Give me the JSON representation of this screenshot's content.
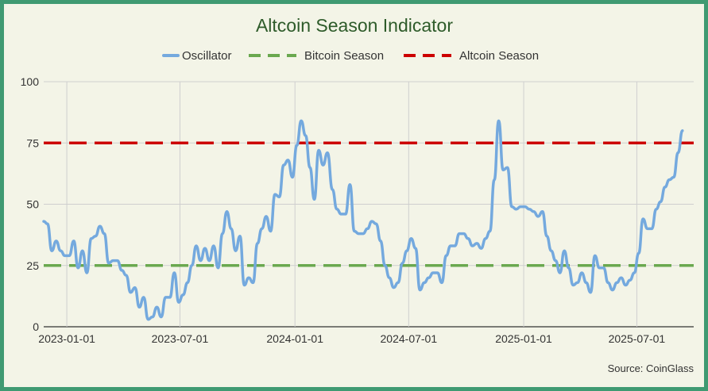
{
  "chart_data": {
    "type": "line",
    "title": "Altcoin Season Indicator",
    "source": "Source: CoinGlass",
    "ylim": [
      0,
      100
    ],
    "yticks": [
      0,
      25,
      50,
      75,
      100
    ],
    "xlim": [
      "2022-11-25",
      "2025-09-30"
    ],
    "xticks": [
      "2023-01-01",
      "2023-07-01",
      "2024-01-01",
      "2024-07-01",
      "2025-01-01",
      "2025-07-01"
    ],
    "grid": true,
    "legend_position": "top-center",
    "colors": {
      "oscillator": "#74a9de",
      "bitcoin": "#6aa84f",
      "altcoin": "#cc0000"
    },
    "series": [
      {
        "name": "Oscillator",
        "style": "solid",
        "points": [
          [
            "2022-11-25",
            43
          ],
          [
            "2022-12-01",
            42
          ],
          [
            "2022-12-08",
            31
          ],
          [
            "2022-12-15",
            35
          ],
          [
            "2022-12-22",
            31
          ],
          [
            "2022-12-29",
            29
          ],
          [
            "2023-01-05",
            29
          ],
          [
            "2023-01-12",
            35
          ],
          [
            "2023-01-19",
            24
          ],
          [
            "2023-01-26",
            31
          ],
          [
            "2023-02-02",
            22
          ],
          [
            "2023-02-09",
            36
          ],
          [
            "2023-02-16",
            37
          ],
          [
            "2023-02-23",
            41
          ],
          [
            "2023-03-02",
            38
          ],
          [
            "2023-03-09",
            26
          ],
          [
            "2023-03-16",
            27
          ],
          [
            "2023-03-23",
            27
          ],
          [
            "2023-03-30",
            23
          ],
          [
            "2023-04-06",
            21
          ],
          [
            "2023-04-13",
            14
          ],
          [
            "2023-04-20",
            16
          ],
          [
            "2023-04-27",
            8
          ],
          [
            "2023-05-04",
            12
          ],
          [
            "2023-05-11",
            3
          ],
          [
            "2023-05-18",
            4
          ],
          [
            "2023-05-25",
            8
          ],
          [
            "2023-06-01",
            4
          ],
          [
            "2023-06-08",
            12
          ],
          [
            "2023-06-15",
            12
          ],
          [
            "2023-06-22",
            22
          ],
          [
            "2023-06-29",
            10
          ],
          [
            "2023-07-06",
            13
          ],
          [
            "2023-07-13",
            18
          ],
          [
            "2023-07-20",
            25
          ],
          [
            "2023-07-27",
            33
          ],
          [
            "2023-08-03",
            27
          ],
          [
            "2023-08-10",
            32
          ],
          [
            "2023-08-17",
            27
          ],
          [
            "2023-08-24",
            33
          ],
          [
            "2023-08-31",
            24
          ],
          [
            "2023-09-07",
            38
          ],
          [
            "2023-09-14",
            47
          ],
          [
            "2023-09-21",
            40
          ],
          [
            "2023-09-28",
            31
          ],
          [
            "2023-10-05",
            37
          ],
          [
            "2023-10-12",
            17
          ],
          [
            "2023-10-19",
            20
          ],
          [
            "2023-10-26",
            18
          ],
          [
            "2023-11-02",
            34
          ],
          [
            "2023-11-09",
            40
          ],
          [
            "2023-11-16",
            45
          ],
          [
            "2023-11-23",
            39
          ],
          [
            "2023-11-30",
            54
          ],
          [
            "2023-12-07",
            53
          ],
          [
            "2023-12-14",
            66
          ],
          [
            "2023-12-21",
            68
          ],
          [
            "2023-12-28",
            61
          ],
          [
            "2024-01-04",
            74
          ],
          [
            "2024-01-11",
            84
          ],
          [
            "2024-01-18",
            78
          ],
          [
            "2024-01-25",
            65
          ],
          [
            "2024-02-01",
            52
          ],
          [
            "2024-02-08",
            72
          ],
          [
            "2024-02-15",
            66
          ],
          [
            "2024-02-22",
            71
          ],
          [
            "2024-03-01",
            56
          ],
          [
            "2024-03-08",
            48
          ],
          [
            "2024-03-15",
            46
          ],
          [
            "2024-03-22",
            46
          ],
          [
            "2024-03-29",
            58
          ],
          [
            "2024-04-05",
            39
          ],
          [
            "2024-04-12",
            38
          ],
          [
            "2024-04-19",
            38
          ],
          [
            "2024-04-26",
            40
          ],
          [
            "2024-05-03",
            43
          ],
          [
            "2024-05-10",
            42
          ],
          [
            "2024-05-17",
            35
          ],
          [
            "2024-05-24",
            25
          ],
          [
            "2024-05-31",
            20
          ],
          [
            "2024-06-07",
            16
          ],
          [
            "2024-06-14",
            18
          ],
          [
            "2024-06-21",
            26
          ],
          [
            "2024-06-28",
            31
          ],
          [
            "2024-07-05",
            36
          ],
          [
            "2024-07-12",
            32
          ],
          [
            "2024-07-19",
            15
          ],
          [
            "2024-07-26",
            18
          ],
          [
            "2024-08-02",
            20
          ],
          [
            "2024-08-09",
            22
          ],
          [
            "2024-08-16",
            22
          ],
          [
            "2024-08-23",
            18
          ],
          [
            "2024-08-30",
            29
          ],
          [
            "2024-09-06",
            33
          ],
          [
            "2024-09-13",
            33
          ],
          [
            "2024-09-20",
            38
          ],
          [
            "2024-09-27",
            38
          ],
          [
            "2024-10-04",
            36
          ],
          [
            "2024-10-11",
            33
          ],
          [
            "2024-10-18",
            34
          ],
          [
            "2024-10-25",
            32
          ],
          [
            "2024-11-01",
            36
          ],
          [
            "2024-11-08",
            39
          ],
          [
            "2024-11-15",
            60
          ],
          [
            "2024-11-22",
            84
          ],
          [
            "2024-11-29",
            64
          ],
          [
            "2024-12-06",
            65
          ],
          [
            "2024-12-13",
            49
          ],
          [
            "2024-12-20",
            48
          ],
          [
            "2024-12-27",
            49
          ],
          [
            "2025-01-03",
            49
          ],
          [
            "2025-01-10",
            48
          ],
          [
            "2025-01-17",
            47
          ],
          [
            "2025-01-24",
            45
          ],
          [
            "2025-01-31",
            47
          ],
          [
            "2025-02-07",
            37
          ],
          [
            "2025-02-14",
            31
          ],
          [
            "2025-02-21",
            27
          ],
          [
            "2025-02-28",
            22
          ],
          [
            "2025-03-07",
            31
          ],
          [
            "2025-03-14",
            24
          ],
          [
            "2025-03-21",
            17
          ],
          [
            "2025-03-28",
            18
          ],
          [
            "2025-04-04",
            22
          ],
          [
            "2025-04-11",
            18
          ],
          [
            "2025-04-18",
            14
          ],
          [
            "2025-04-25",
            29
          ],
          [
            "2025-05-02",
            24
          ],
          [
            "2025-05-09",
            24
          ],
          [
            "2025-05-16",
            18
          ],
          [
            "2025-05-23",
            15
          ],
          [
            "2025-05-30",
            18
          ],
          [
            "2025-06-06",
            20
          ],
          [
            "2025-06-13",
            17
          ],
          [
            "2025-06-20",
            19
          ],
          [
            "2025-06-27",
            22
          ],
          [
            "2025-07-04",
            30
          ],
          [
            "2025-07-11",
            44
          ],
          [
            "2025-07-18",
            40
          ],
          [
            "2025-07-25",
            40
          ],
          [
            "2025-08-01",
            48
          ],
          [
            "2025-08-08",
            51
          ],
          [
            "2025-08-15",
            57
          ],
          [
            "2025-08-22",
            60
          ],
          [
            "2025-08-29",
            61
          ],
          [
            "2025-09-05",
            71
          ],
          [
            "2025-09-12",
            80
          ]
        ]
      },
      {
        "name": "Bitcoin Season",
        "style": "dashed",
        "value": 25
      },
      {
        "name": "Altcoin Season",
        "style": "dashed",
        "value": 75
      }
    ]
  }
}
